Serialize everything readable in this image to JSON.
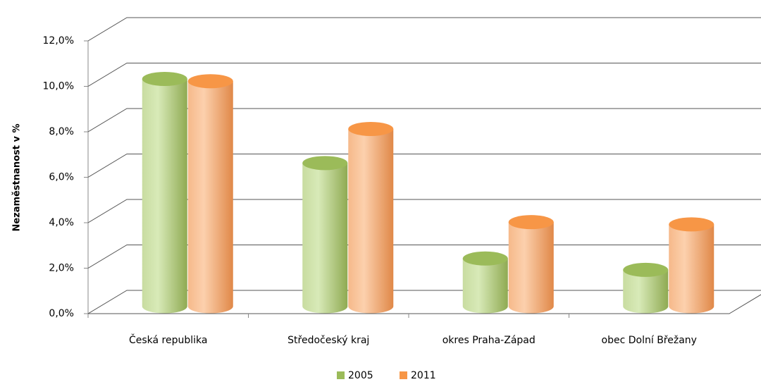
{
  "chart_data": {
    "type": "bar3d",
    "y_label": "Nezaměstnanost  v %",
    "categories": [
      "Česká republika",
      "Středočeský kraj",
      "okres Praha-Západ",
      "obec Dolní Břežany"
    ],
    "series": [
      {
        "name": "2005",
        "color": "#9bbb59",
        "values": [
          10.0,
          6.3,
          2.1,
          1.6
        ]
      },
      {
        "name": "2011",
        "color": "#f79646",
        "values": [
          9.9,
          7.8,
          3.7,
          3.6
        ]
      }
    ],
    "ylim": [
      0,
      12
    ],
    "yticks": [
      {
        "value": 0,
        "label": "0,0%"
      },
      {
        "value": 2,
        "label": "2,0%"
      },
      {
        "value": 4,
        "label": "4,0%"
      },
      {
        "value": 6,
        "label": "6,0%"
      },
      {
        "value": 8,
        "label": "8,0%"
      },
      {
        "value": 10,
        "label": "10,0%"
      },
      {
        "value": 12,
        "label": "12,0%"
      }
    ],
    "grid": true,
    "legend": "bottom"
  }
}
